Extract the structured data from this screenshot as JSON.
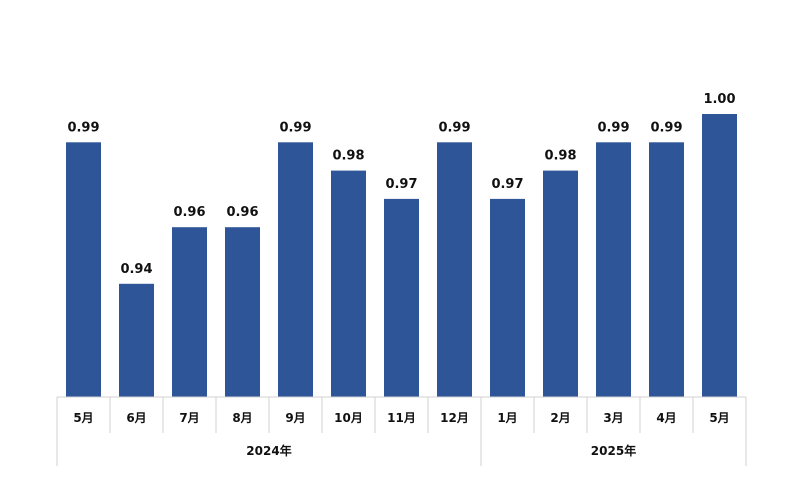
{
  "chart_data": {
    "type": "bar",
    "categories": [
      "5月",
      "6月",
      "7月",
      "8月",
      "9月",
      "10月",
      "11月",
      "12月",
      "1月",
      "2月",
      "3月",
      "4月",
      "5月"
    ],
    "values": [
      0.99,
      0.94,
      0.96,
      0.96,
      0.99,
      0.98,
      0.97,
      0.99,
      0.97,
      0.98,
      0.99,
      0.99,
      1.0
    ],
    "value_labels": [
      "0.99",
      "0.94",
      "0.96",
      "0.96",
      "0.99",
      "0.98",
      "0.97",
      "0.99",
      "0.97",
      "0.98",
      "0.99",
      "0.99",
      "1.00"
    ],
    "year_groups": [
      {
        "label": "2024年",
        "start": 0,
        "end": 7
      },
      {
        "label": "2025年",
        "start": 8,
        "end": 12
      }
    ],
    "ylim": [
      0.9,
      1.0
    ],
    "grid": false,
    "bar_color": "#2E5597"
  }
}
